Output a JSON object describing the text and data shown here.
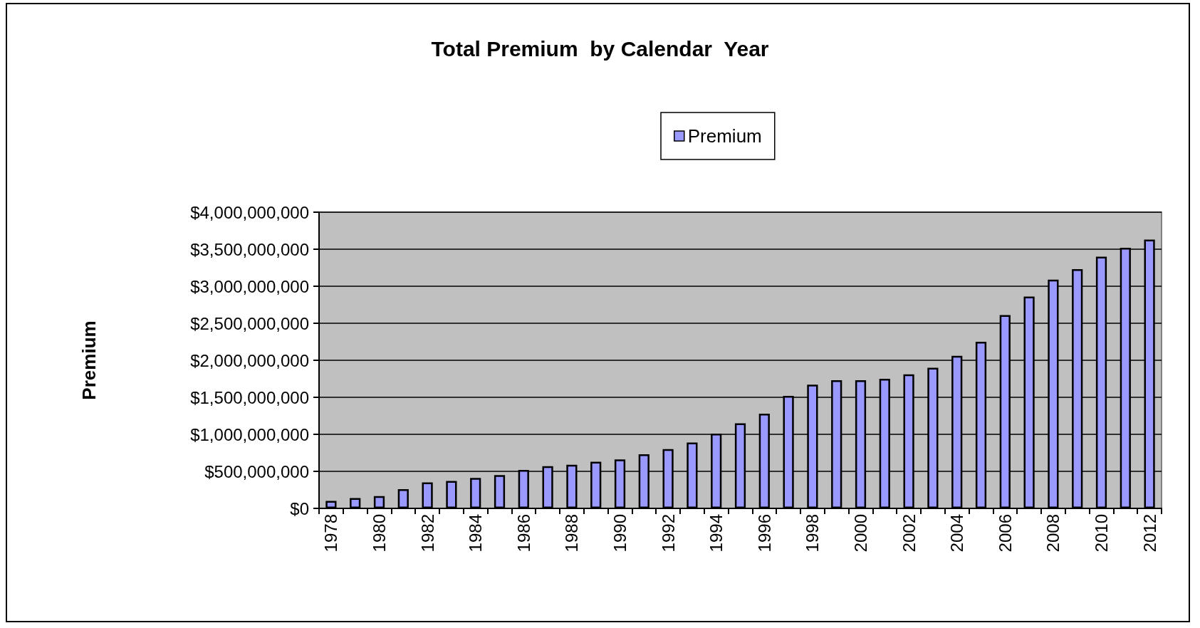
{
  "chart_data": {
    "type": "bar",
    "title": "Total Premium  by Calendar  Year",
    "ylabel": "Premium",
    "categories": [
      "1978",
      null,
      "1980",
      null,
      "1982",
      null,
      "1984",
      null,
      "1986",
      null,
      "1988",
      null,
      "1990",
      null,
      "1992",
      null,
      "1994",
      null,
      "1996",
      null,
      "1998",
      null,
      "2000",
      null,
      "2002",
      null,
      "2004",
      null,
      "2006",
      null,
      "2008",
      null,
      "2010",
      null,
      "2012"
    ],
    "series": [
      {
        "name": "Premium",
        "color": "#9999ff",
        "values": [
          100000000,
          140000000,
          165000000,
          260000000,
          350000000,
          370000000,
          410000000,
          450000000,
          520000000,
          570000000,
          590000000,
          630000000,
          660000000,
          730000000,
          800000000,
          890000000,
          1010000000,
          1150000000,
          1280000000,
          1520000000,
          1670000000,
          1730000000,
          1730000000,
          1750000000,
          1810000000,
          1900000000,
          2060000000,
          2250000000,
          2610000000,
          2860000000,
          3090000000,
          3230000000,
          3400000000,
          3520000000,
          3630000000
        ]
      }
    ],
    "ylim": [
      0,
      4000000000
    ],
    "yticks": [
      {
        "value": 0,
        "label": "$0"
      },
      {
        "value": 500000000,
        "label": "$500,000,000"
      },
      {
        "value": 1000000000,
        "label": "$1,000,000,000"
      },
      {
        "value": 1500000000,
        "label": "$1,500,000,000"
      },
      {
        "value": 2000000000,
        "label": "$2,000,000,000"
      },
      {
        "value": 2500000000,
        "label": "$2,500,000,000"
      },
      {
        "value": 3000000000,
        "label": "$3,000,000,000"
      },
      {
        "value": 3500000000,
        "label": "$3,500,000,000"
      },
      {
        "value": 4000000000,
        "label": "$4,000,000,000"
      }
    ],
    "grid": "y",
    "legend": "top"
  }
}
